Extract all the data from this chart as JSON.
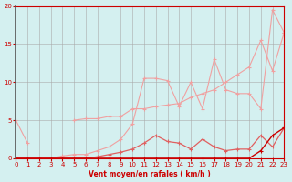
{
  "x": [
    0,
    1,
    2,
    3,
    4,
    5,
    6,
    7,
    8,
    9,
    10,
    11,
    12,
    13,
    14,
    15,
    16,
    17,
    18,
    19,
    20,
    21,
    22,
    23
  ],
  "line1": [
    5.0,
    2.0,
    null,
    null,
    null,
    5.0,
    5.2,
    5.2,
    5.5,
    5.5,
    6.5,
    6.5,
    6.8,
    7.0,
    7.2,
    8.0,
    8.5,
    9.0,
    10.0,
    11.0,
    12.0,
    15.5,
    11.5,
    16.5
  ],
  "line2": [
    0.0,
    0.0,
    0.0,
    0.0,
    0.3,
    0.5,
    0.5,
    1.0,
    1.5,
    2.5,
    4.5,
    10.5,
    10.5,
    10.2,
    6.8,
    10.0,
    6.5,
    13.0,
    9.0,
    8.5,
    8.5,
    6.5,
    19.5,
    16.5
  ],
  "line3": [
    0.0,
    0.0,
    0.0,
    0.0,
    0.0,
    0.0,
    0.0,
    0.2,
    0.5,
    0.8,
    1.2,
    2.0,
    3.0,
    2.2,
    2.0,
    1.2,
    2.5,
    1.5,
    1.0,
    1.2,
    1.2,
    3.0,
    1.5,
    4.0
  ],
  "line4": [
    0.0,
    0.0,
    0.0,
    0.0,
    0.0,
    0.0,
    0.0,
    0.0,
    0.0,
    0.0,
    0.0,
    0.0,
    0.0,
    0.0,
    0.0,
    0.0,
    0.0,
    0.0,
    0.0,
    0.0,
    0.0,
    1.0,
    3.0,
    4.0
  ],
  "line5": [
    0.0,
    0.0,
    0.0,
    0.0,
    0.0,
    0.0,
    0.0,
    0.0,
    0.0,
    0.0,
    0.0,
    0.0,
    0.0,
    0.0,
    0.0,
    0.0,
    0.0,
    0.0,
    0.0,
    0.0,
    0.0,
    0.0,
    0.0,
    0.0
  ],
  "bg_color": "#d4f0f0",
  "grid_color": "#aaaaaa",
  "color_light": "#f0a0a0",
  "color_medium": "#e06060",
  "color_dark": "#cc0000",
  "xlabel": "Vent moyen/en rafales ( km/h )",
  "ylabel": "",
  "xlim": [
    0,
    23
  ],
  "ylim": [
    0,
    20
  ],
  "yticks": [
    0,
    5,
    10,
    15,
    20
  ],
  "xticks": [
    0,
    1,
    2,
    3,
    4,
    5,
    6,
    7,
    8,
    9,
    10,
    11,
    12,
    13,
    14,
    15,
    16,
    17,
    18,
    19,
    20,
    21,
    22,
    23
  ]
}
